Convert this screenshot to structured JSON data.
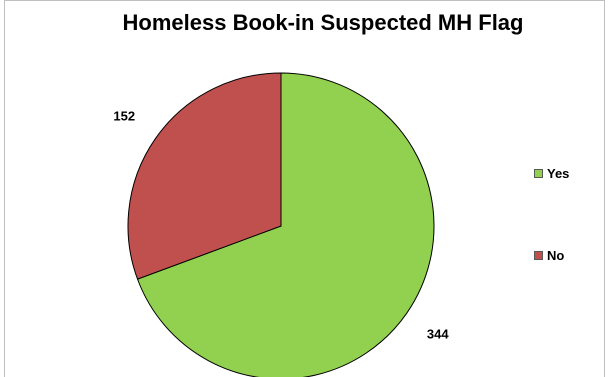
{
  "chart_data": {
    "type": "pie",
    "title": "Homeless Book-in Suspected MH Flag",
    "categories": [
      "Yes",
      "No"
    ],
    "values": [
      344,
      152
    ],
    "colors": [
      "#92d050",
      "#c0504d"
    ],
    "legend_position": "right",
    "data_labels": [
      "344",
      "152"
    ]
  }
}
